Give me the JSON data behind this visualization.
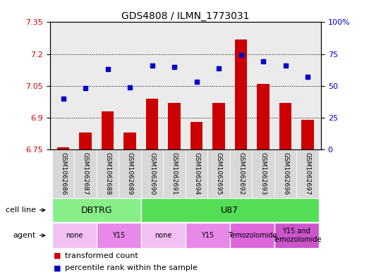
{
  "title": "GDS4808 / ILMN_1773031",
  "samples": [
    "GSM1062686",
    "GSM1062687",
    "GSM1062688",
    "GSM1062689",
    "GSM1062690",
    "GSM1062691",
    "GSM1062694",
    "GSM1062695",
    "GSM1062692",
    "GSM1062693",
    "GSM1062696",
    "GSM1062697"
  ],
  "bar_values": [
    6.76,
    6.83,
    6.93,
    6.83,
    6.99,
    6.97,
    6.88,
    6.97,
    7.27,
    7.06,
    6.97,
    6.89
  ],
  "scatter_values": [
    40,
    48,
    63,
    49,
    66,
    65,
    53,
    64,
    74,
    69,
    66,
    57
  ],
  "ylim_left": [
    6.75,
    7.35
  ],
  "ylim_right": [
    0,
    100
  ],
  "yticks_left": [
    6.75,
    6.9,
    7.05,
    7.2,
    7.35
  ],
  "yticks_right": [
    0,
    25,
    50,
    75,
    100
  ],
  "bar_color": "#cc0000",
  "scatter_color": "#0000cc",
  "bar_bottom": 6.75,
  "cell_line_groups": [
    {
      "label": "DBTRG",
      "start": 0,
      "end": 3,
      "color": "#88ee88"
    },
    {
      "label": "U87",
      "start": 4,
      "end": 11,
      "color": "#55dd55"
    }
  ],
  "agent_groups": [
    {
      "label": "none",
      "start": 0,
      "end": 1,
      "color": "#f2c0f2"
    },
    {
      "label": "Y15",
      "start": 2,
      "end": 3,
      "color": "#e888e8"
    },
    {
      "label": "none",
      "start": 4,
      "end": 5,
      "color": "#f2c0f2"
    },
    {
      "label": "Y15",
      "start": 6,
      "end": 7,
      "color": "#e888e8"
    },
    {
      "label": "Temozolomide",
      "start": 8,
      "end": 9,
      "color": "#dd66dd"
    },
    {
      "label": "Y15 and\nTemozolomide",
      "start": 10,
      "end": 11,
      "color": "#cc55cc"
    }
  ],
  "cell_line_label": "cell line",
  "agent_label": "agent",
  "legend_bar": "transformed count",
  "legend_scatter": "percentile rank within the sample",
  "plot_bg": "#ebebeb",
  "tick_label_color_left": "#cc0000",
  "tick_label_color_right": "#0000cc",
  "sample_col_color": "#d8d8d8",
  "sample_col_alt": "#e8e8e8"
}
